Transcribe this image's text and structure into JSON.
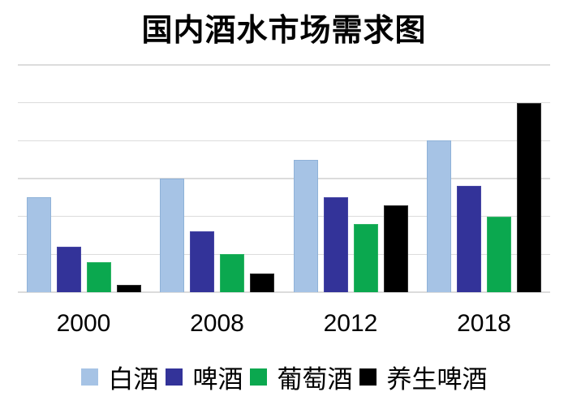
{
  "chart_data": {
    "type": "bar",
    "title": "国内酒水市场需求图",
    "xlabel": "",
    "ylabel": "",
    "categories": [
      "2000",
      "2008",
      "2012",
      "2018"
    ],
    "series": [
      {
        "name": "白酒",
        "color": "#a6c3e5",
        "border_color": "#8fb2d8",
        "values": [
          2.5,
          3.0,
          3.5,
          4.0
        ]
      },
      {
        "name": "啤酒",
        "color": "#333399",
        "border_color": "#4646a5",
        "values": [
          1.2,
          1.6,
          2.5,
          2.8
        ]
      },
      {
        "name": "葡萄酒",
        "color": "#0ba84f",
        "border_color": "#2cb564",
        "values": [
          0.8,
          1.0,
          1.8,
          2.0
        ]
      },
      {
        "name": "养生啤酒",
        "color": "#000000",
        "border_color": "#2e2e2e",
        "values": [
          0.2,
          0.5,
          2.3,
          5.0
        ]
      }
    ],
    "ylim": [
      0,
      6
    ],
    "gridline_count": 7,
    "grid_color": "#dcdcdc",
    "grid_on": true,
    "y_tick_labels_visible": false,
    "legend_position": "bottom",
    "background_color": "#ffffff",
    "note": "no numeric y-axis labels shown; values estimated in gridline units (one unit per gridline interval)"
  }
}
